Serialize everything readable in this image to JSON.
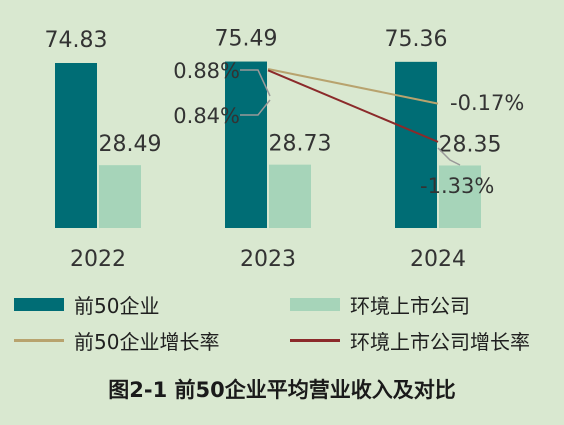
{
  "chart_data": {
    "type": "bar",
    "title": "图2-1 前50企业平均营业收入及对比",
    "categories": [
      "2022",
      "2023",
      "2024"
    ],
    "series": [
      {
        "name": "前50企业",
        "type": "bar",
        "color": "#006d75",
        "values": [
          74.83,
          75.49,
          75.36
        ],
        "labels": [
          "74.83",
          "75.49",
          "75.36"
        ]
      },
      {
        "name": "环境上市公司",
        "type": "bar",
        "color": "#a6d4b9",
        "values": [
          28.49,
          28.73,
          28.35
        ],
        "labels": [
          "28.49",
          "28.73",
          "28.35"
        ]
      }
    ],
    "lines": [
      {
        "name": "前50企业增长率",
        "type": "line",
        "color": "#b8a36e",
        "values": [
          0.88,
          -0.17
        ],
        "labels": [
          "0.88%",
          "-0.17%"
        ],
        "categories": [
          "2023",
          "2024"
        ]
      },
      {
        "name": "环境上市公司增长率",
        "type": "line",
        "color": "#8b2a2a",
        "values": [
          0.84,
          -1.33
        ],
        "labels": [
          "0.84%",
          "-1.33%"
        ],
        "categories": [
          "2023",
          "2024"
        ]
      }
    ],
    "legend": [
      "前50企业",
      "环境上市公司",
      "前50企业增长率",
      "环境上市公司增长率"
    ],
    "legend_position": "bottom"
  }
}
